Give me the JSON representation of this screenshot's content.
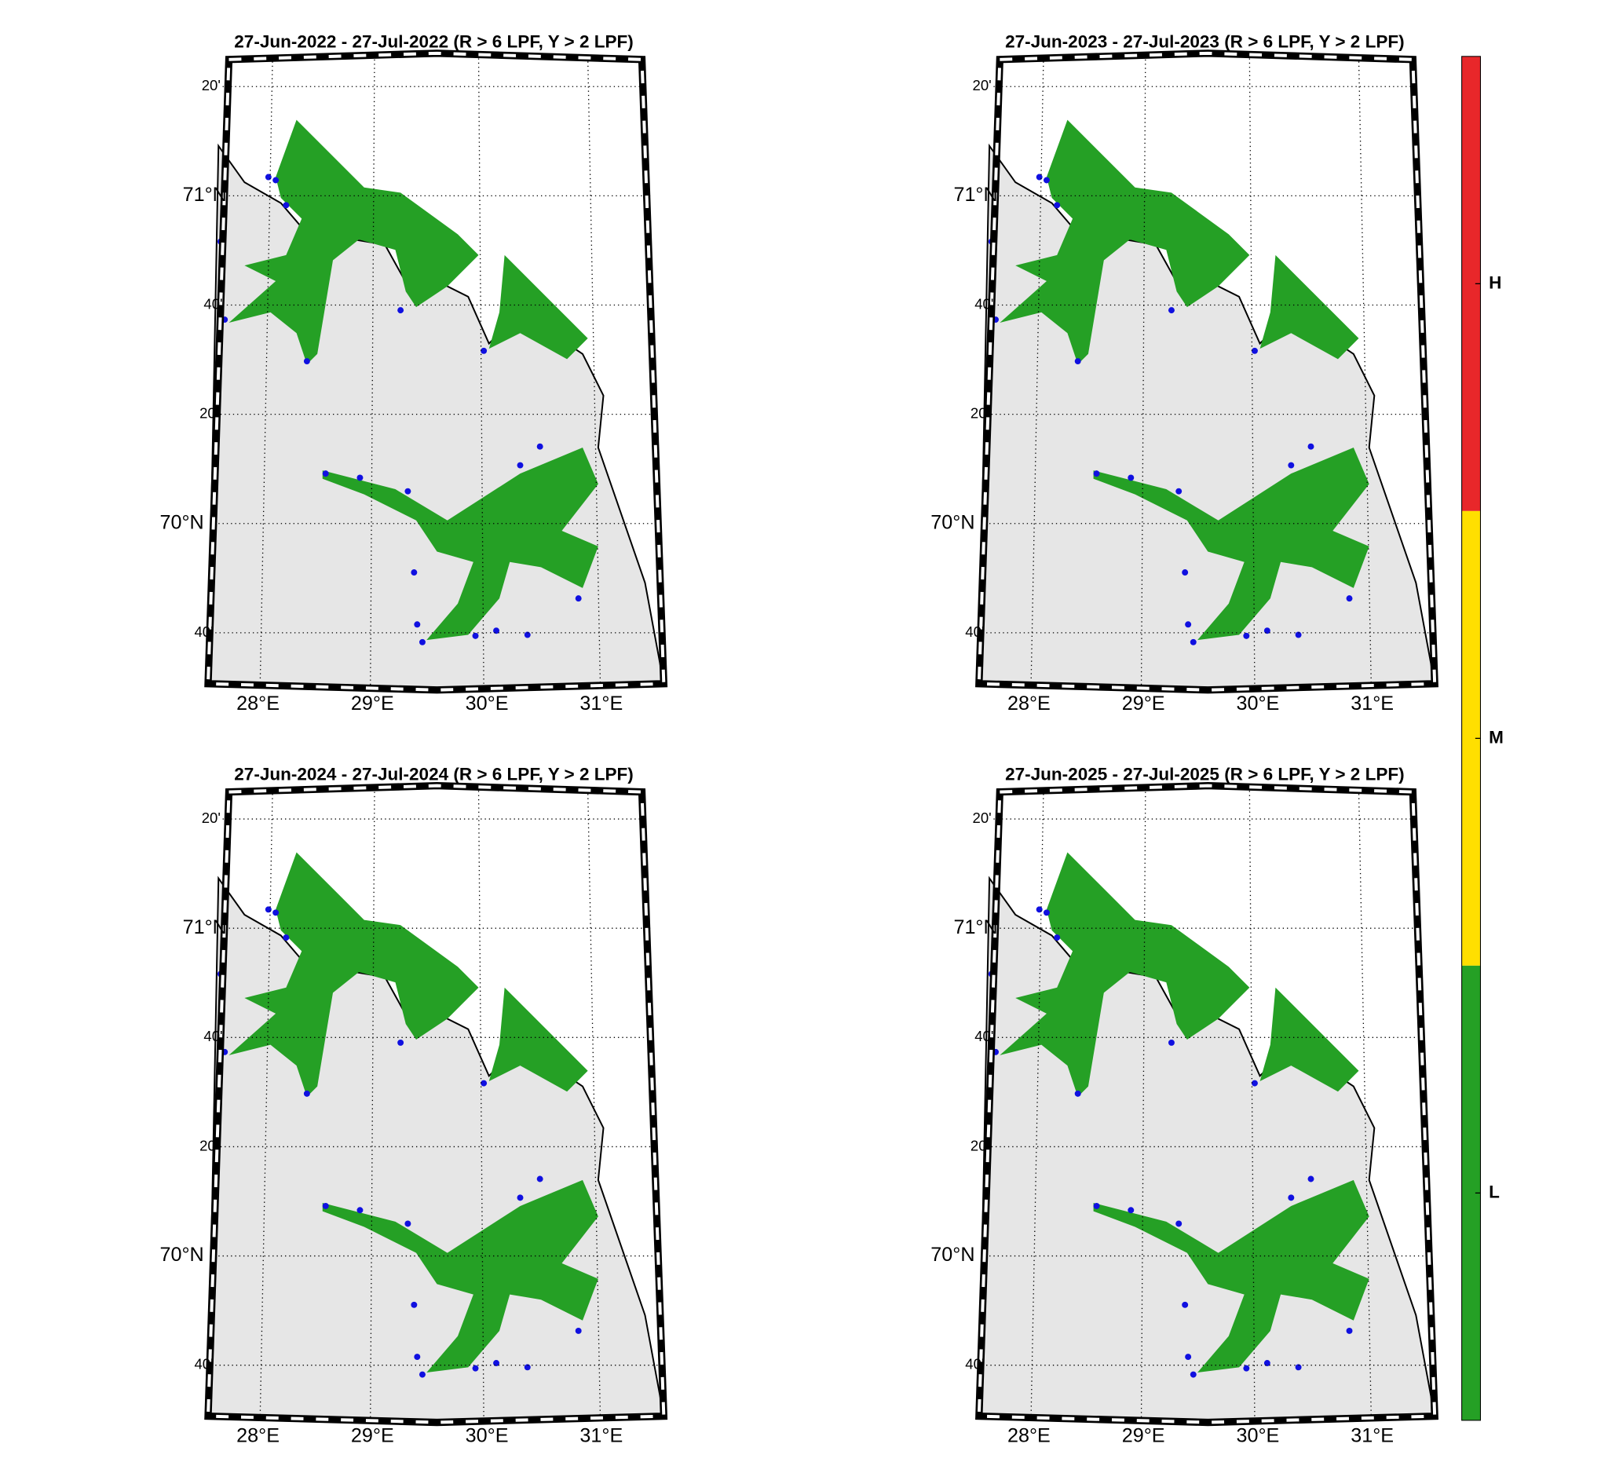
{
  "panels": [
    {
      "title": "27-Jun-2022  - 27-Jul-2022  (R > 6 LPF, Y > 2 LPF)",
      "lat_labels": [
        "20'",
        "71°N",
        "40'",
        "20'",
        "70°N",
        "40'"
      ],
      "lon_labels": [
        "28°E",
        "29°E",
        "30°E",
        "31°E"
      ]
    },
    {
      "title": "27-Jun-2023  - 27-Jul-2023  (R > 6 LPF, Y > 2 LPF)",
      "lat_labels": [
        "20'",
        "71°N",
        "40'",
        "20'",
        "70°N",
        "40'"
      ],
      "lon_labels": [
        "28°E",
        "29°E",
        "30°E",
        "31°E"
      ]
    },
    {
      "title": "27-Jun-2024  - 27-Jul-2024  (R > 6 LPF, Y > 2 LPF)",
      "lat_labels": [
        "20'",
        "71°N",
        "40'",
        "20'",
        "70°N",
        "40'"
      ],
      "lon_labels": [
        "28°E",
        "29°E",
        "30°E",
        "31°E"
      ]
    },
    {
      "title": "27-Jun-2025  - 27-Jul-2025  (R > 6 LPF, Y > 2 LPF)",
      "lat_labels": [
        "20'",
        "71°N",
        "40'",
        "20'",
        "70°N",
        "40'"
      ],
      "lon_labels": [
        "28°E",
        "29°E",
        "30°E",
        "31°E"
      ]
    }
  ],
  "colorbar": {
    "labels": [
      "H",
      "M",
      "L"
    ],
    "colors": [
      "#e8272a",
      "#ffdf00",
      "#25a025"
    ]
  }
}
